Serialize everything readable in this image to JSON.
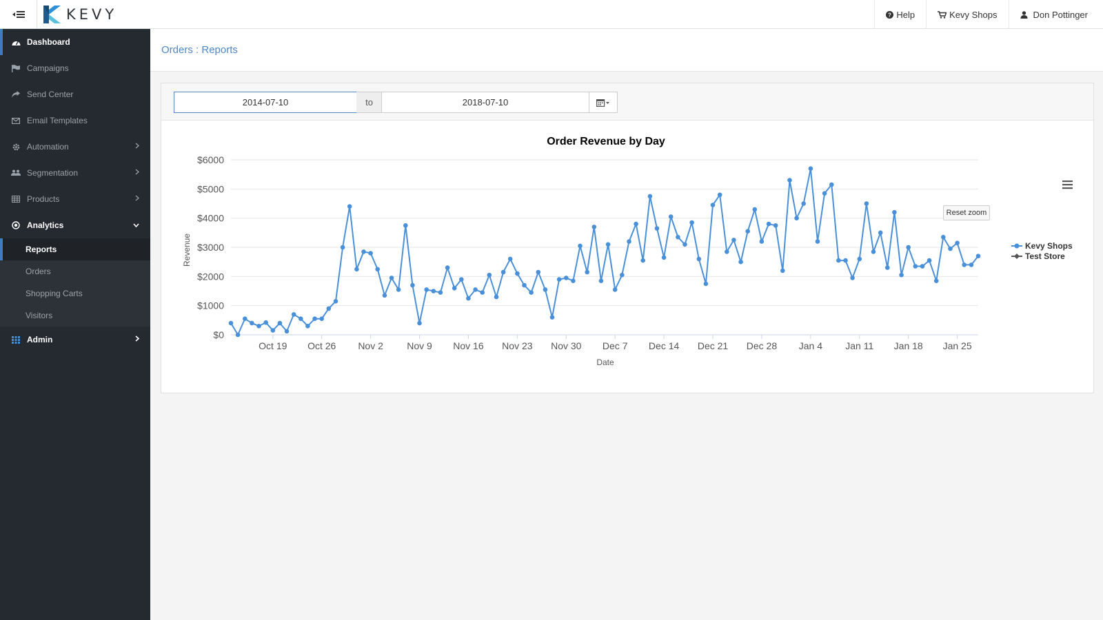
{
  "brand": {
    "name": "KEVY"
  },
  "topnav": {
    "help": "Help",
    "store": "Kevy Shops",
    "user": "Don Pottinger"
  },
  "sidebar": {
    "items": [
      {
        "label": "Dashboard",
        "icon": "dashboard-icon"
      },
      {
        "label": "Campaigns",
        "icon": "flag-icon"
      },
      {
        "label": "Send Center",
        "icon": "share-icon"
      },
      {
        "label": "Email Templates",
        "icon": "envelope-icon"
      },
      {
        "label": "Automation",
        "icon": "gear-icon"
      },
      {
        "label": "Segmentation",
        "icon": "users-icon"
      },
      {
        "label": "Products",
        "icon": "table-icon"
      },
      {
        "label": "Analytics",
        "icon": "target-icon"
      }
    ],
    "analytics_sub": [
      "Reports",
      "Orders",
      "Shopping Carts",
      "Visitors"
    ],
    "admin": "Admin"
  },
  "breadcrumb": {
    "section": "Orders",
    "separator": " : ",
    "page": "Reports"
  },
  "filters": {
    "start_date": "2014-07-10",
    "to_label": "to",
    "end_date": "2018-07-10"
  },
  "chart": {
    "reset_zoom_label": "Reset zoom"
  },
  "colors": {
    "accent": "#3f7cc2",
    "series": "#4a90d9",
    "sidebar": "#252a30"
  },
  "chart_data": {
    "type": "line",
    "title": "Order Revenue by Day",
    "xlabel": "Date",
    "ylabel": "Revenue",
    "ylim": [
      0,
      6000
    ],
    "yticks": [
      "$0",
      "$1000",
      "$2000",
      "$3000",
      "$4000",
      "$5000",
      "$6000"
    ],
    "yticks_values": [
      0,
      1000,
      2000,
      3000,
      4000,
      5000,
      6000
    ],
    "x_start": "Oct 13",
    "x_tick_labels": [
      "Oct 19",
      "Oct 26",
      "Nov 2",
      "Nov 9",
      "Nov 16",
      "Nov 23",
      "Nov 30",
      "Dec 7",
      "Dec 14",
      "Dec 21",
      "Dec 28",
      "Jan 4",
      "Jan 11",
      "Jan 18",
      "Jan 25"
    ],
    "legend_position": "right",
    "grid": true,
    "series": [
      {
        "name": "Kevy Shops",
        "values": [
          400,
          0,
          550,
          400,
          300,
          420,
          150,
          400,
          120,
          700,
          550,
          300,
          550,
          550,
          900,
          1150,
          3000,
          4400,
          2250,
          2850,
          2800,
          2250,
          1350,
          1950,
          1550,
          3750,
          1700,
          400,
          1550,
          1500,
          1450,
          2300,
          1600,
          1900,
          1250,
          1550,
          1450,
          2050,
          1300,
          2150,
          2600,
          2100,
          1700,
          1450,
          2150,
          1550,
          600,
          1900,
          1950,
          1850,
          3050,
          2150,
          3700,
          1850,
          3100,
          1550,
          2050,
          3200,
          3800,
          2550,
          4750,
          3650,
          2650,
          4050,
          3350,
          3100,
          3850,
          2600,
          1750,
          4450,
          4800,
          2850,
          3250,
          2500,
          3550,
          4300,
          3200,
          3800,
          3750,
          2200,
          5300,
          4000,
          4500,
          5700,
          3200,
          4850,
          5150,
          2550,
          2550,
          1950,
          2600,
          4500,
          2850,
          3500,
          2300,
          4200,
          2050,
          3000,
          2350,
          2350,
          2550,
          1850,
          3350,
          2950,
          3150,
          2400,
          2400,
          2700
        ]
      },
      {
        "name": "Test Store",
        "values": []
      }
    ]
  }
}
